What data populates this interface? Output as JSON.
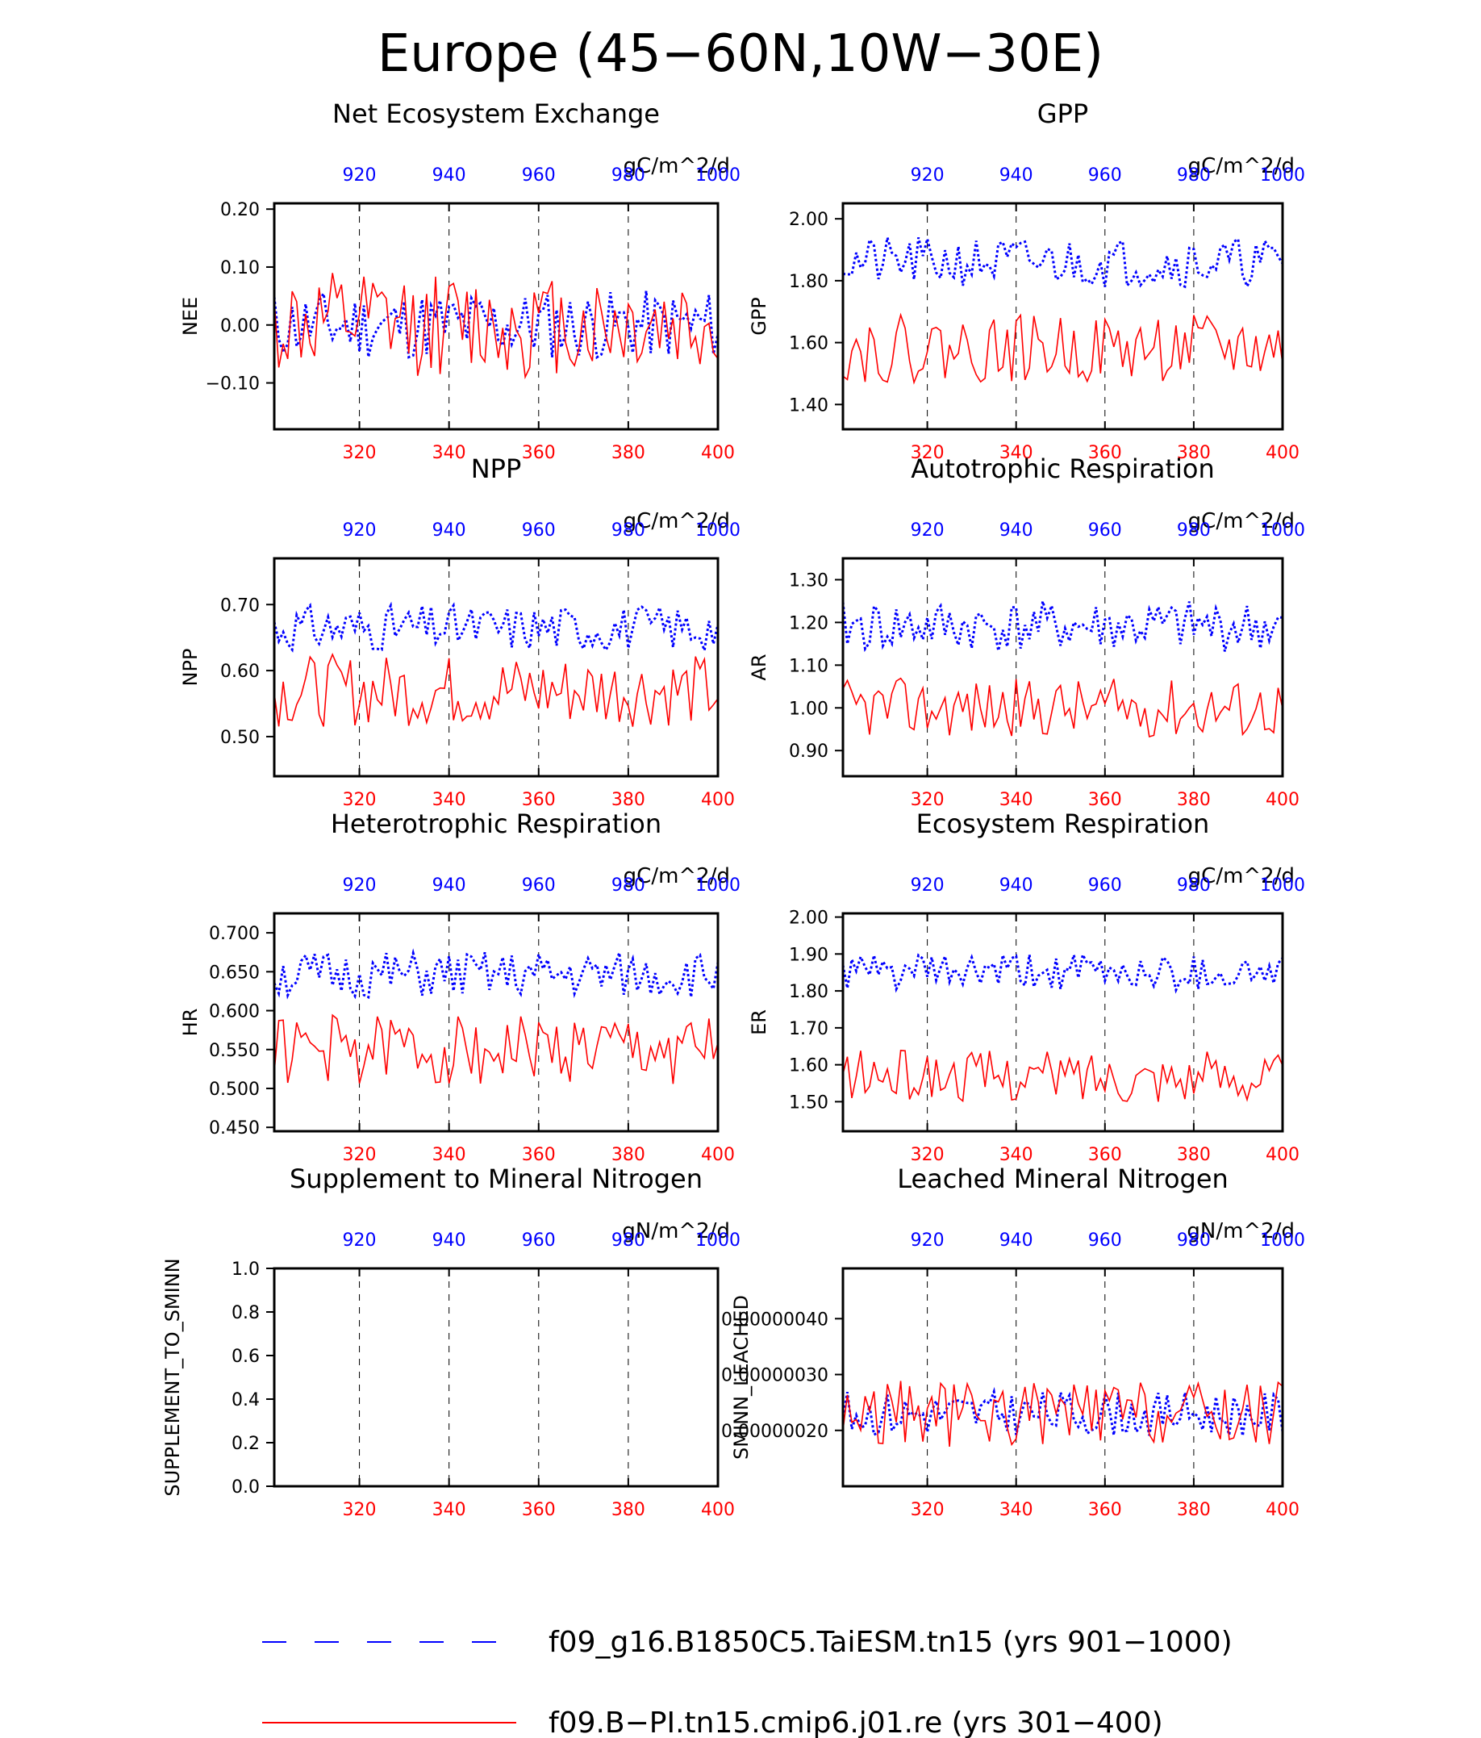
{
  "figure": {
    "title": "Europe (45−60N,10W−30E)",
    "colors": {
      "series_a": "#0000ff",
      "series_b": "#ff0000",
      "frame": "#000000"
    }
  },
  "legend": {
    "items": [
      {
        "label": "f09_g16.B1850C5.TaiESM.tn15 (yrs 901−1000)",
        "color": "#0000ff",
        "style": "dashed"
      },
      {
        "label": "f09.B−PI.tn15.cmip6.j01.re (yrs 301−400)",
        "color": "#ff0000",
        "style": "solid"
      }
    ]
  },
  "chart_data": [
    {
      "type": "line",
      "title": "Net Ecosystem Exchange",
      "units": "gC/m^2/d",
      "ylabel": "NEE",
      "ylim": [
        -0.18,
        0.21
      ],
      "yticks": [
        0.2,
        0.1,
        0.0,
        -0.1
      ],
      "ytick_labels": [
        "0.20",
        "0.10",
        "0.00",
        "−0.10"
      ],
      "x_bottom_ticks": [
        320,
        340,
        360,
        380,
        400
      ],
      "x_top_ticks": [
        920,
        940,
        960,
        980,
        1000
      ],
      "x_range_bottom": [
        301,
        400
      ],
      "grid": "vertical-dashed",
      "series": [
        {
          "color": "#0000ff",
          "dashed": true,
          "years": [
            901,
            1000
          ],
          "mean": 0.0,
          "amp": 0.06,
          "seed": 11
        },
        {
          "color": "#ff0000",
          "dashed": false,
          "years": [
            301,
            400
          ],
          "mean": 0.0,
          "amp": 0.09,
          "seed": 12
        }
      ]
    },
    {
      "type": "line",
      "title": "GPP",
      "units": "gC/m^2/d",
      "ylabel": "GPP",
      "ylim": [
        1.32,
        2.05
      ],
      "yticks": [
        2.0,
        1.8,
        1.6,
        1.4
      ],
      "ytick_labels": [
        "2.00",
        "1.80",
        "1.60",
        "1.40"
      ],
      "x_bottom_ticks": [
        320,
        340,
        360,
        380,
        400
      ],
      "x_top_ticks": [
        920,
        940,
        960,
        980,
        1000
      ],
      "x_range_bottom": [
        301,
        400
      ],
      "grid": "vertical-dashed",
      "series": [
        {
          "color": "#0000ff",
          "dashed": true,
          "years": [
            901,
            1000
          ],
          "mean": 1.86,
          "amp": 0.08,
          "seed": 21
        },
        {
          "color": "#ff0000",
          "dashed": false,
          "years": [
            301,
            400
          ],
          "mean": 1.58,
          "amp": 0.11,
          "seed": 22
        }
      ]
    },
    {
      "type": "line",
      "title": "NPP",
      "units": "gC/m^2/d",
      "ylabel": "NPP",
      "ylim": [
        0.44,
        0.77
      ],
      "yticks": [
        0.7,
        0.6,
        0.5
      ],
      "ytick_labels": [
        "0.70",
        "0.60",
        "0.50"
      ],
      "x_bottom_ticks": [
        320,
        340,
        360,
        380,
        400
      ],
      "x_top_ticks": [
        920,
        940,
        960,
        980,
        1000
      ],
      "x_range_bottom": [
        301,
        400
      ],
      "grid": "vertical-dashed",
      "series": [
        {
          "color": "#0000ff",
          "dashed": true,
          "years": [
            901,
            1000
          ],
          "mean": 0.665,
          "amp": 0.035,
          "seed": 31
        },
        {
          "color": "#ff0000",
          "dashed": false,
          "years": [
            301,
            400
          ],
          "mean": 0.57,
          "amp": 0.055,
          "seed": 32
        }
      ]
    },
    {
      "type": "line",
      "title": "Autotrophic Respiration",
      "units": "gC/m^2/d",
      "ylabel": "AR",
      "ylim": [
        0.84,
        1.35
      ],
      "yticks": [
        1.3,
        1.2,
        1.1,
        1.0,
        0.9
      ],
      "ytick_labels": [
        "1.30",
        "1.20",
        "1.10",
        "1.00",
        "0.90"
      ],
      "x_bottom_ticks": [
        320,
        340,
        360,
        380,
        400
      ],
      "x_top_ticks": [
        920,
        940,
        960,
        980,
        1000
      ],
      "x_range_bottom": [
        301,
        400
      ],
      "grid": "vertical-dashed",
      "series": [
        {
          "color": "#0000ff",
          "dashed": true,
          "years": [
            901,
            1000
          ],
          "mean": 1.19,
          "amp": 0.06,
          "seed": 41
        },
        {
          "color": "#ff0000",
          "dashed": false,
          "years": [
            301,
            400
          ],
          "mean": 1.0,
          "amp": 0.07,
          "seed": 42
        }
      ]
    },
    {
      "type": "line",
      "title": "Heterotrophic Respiration",
      "units": "gC/m^2/d",
      "ylabel": "HR",
      "ylim": [
        0.445,
        0.725
      ],
      "yticks": [
        0.7,
        0.65,
        0.6,
        0.55,
        0.5,
        0.45
      ],
      "ytick_labels": [
        "0.700",
        "0.650",
        "0.600",
        "0.550",
        "0.500",
        "0.450"
      ],
      "x_bottom_ticks": [
        320,
        340,
        360,
        380,
        400
      ],
      "x_top_ticks": [
        920,
        940,
        960,
        980,
        1000
      ],
      "x_range_bottom": [
        301,
        400
      ],
      "grid": "vertical-dashed",
      "series": [
        {
          "color": "#0000ff",
          "dashed": true,
          "years": [
            901,
            1000
          ],
          "mean": 0.645,
          "amp": 0.03,
          "seed": 51
        },
        {
          "color": "#ff0000",
          "dashed": false,
          "years": [
            301,
            400
          ],
          "mean": 0.55,
          "amp": 0.045,
          "seed": 52
        }
      ]
    },
    {
      "type": "line",
      "title": "Ecosystem Respiration",
      "units": "gC/m^2/d",
      "ylabel": "ER",
      "ylim": [
        1.42,
        2.01
      ],
      "yticks": [
        2.0,
        1.9,
        1.8,
        1.7,
        1.6,
        1.5
      ],
      "ytick_labels": [
        "2.00",
        "1.90",
        "1.80",
        "1.70",
        "1.60",
        "1.50"
      ],
      "x_bottom_ticks": [
        320,
        340,
        360,
        380,
        400
      ],
      "x_top_ticks": [
        920,
        940,
        960,
        980,
        1000
      ],
      "x_range_bottom": [
        301,
        400
      ],
      "grid": "vertical-dashed",
      "series": [
        {
          "color": "#0000ff",
          "dashed": true,
          "years": [
            901,
            1000
          ],
          "mean": 1.85,
          "amp": 0.05,
          "seed": 61
        },
        {
          "color": "#ff0000",
          "dashed": false,
          "years": [
            301,
            400
          ],
          "mean": 1.57,
          "amp": 0.07,
          "seed": 62
        }
      ]
    },
    {
      "type": "line",
      "title": "Supplement to Mineral Nitrogen",
      "units": "gN/m^2/d",
      "ylabel": "SUPPLEMENT_TO_SMINN",
      "ylim": [
        0.0,
        1.0
      ],
      "yticks": [
        1.0,
        0.8,
        0.6,
        0.4,
        0.2,
        0.0
      ],
      "ytick_labels": [
        "1.0",
        "0.8",
        "0.6",
        "0.4",
        "0.2",
        "0.0"
      ],
      "x_bottom_ticks": [
        320,
        340,
        360,
        380,
        400
      ],
      "x_top_ticks": [
        920,
        940,
        960,
        980,
        1000
      ],
      "x_range_bottom": [
        301,
        400
      ],
      "grid": "vertical-dashed",
      "series": []
    },
    {
      "type": "line",
      "title": "Leached Mineral Nitrogen",
      "units": "gN/m^2/d",
      "ylabel": "SMINN_LEACHED",
      "ylim": [
        1e-07,
        4.9e-07
      ],
      "yticks": [
        4e-07,
        3e-07,
        2e-07
      ],
      "ytick_labels": [
        "0.00000040",
        "0.00000030",
        "0.00000020"
      ],
      "x_bottom_ticks": [
        320,
        340,
        360,
        380,
        400
      ],
      "x_top_ticks": [
        920,
        940,
        960,
        980,
        1000
      ],
      "x_range_bottom": [
        301,
        400
      ],
      "grid": "vertical-dashed",
      "series": [
        {
          "color": "#0000ff",
          "dashed": true,
          "years": [
            901,
            1000
          ],
          "mean": 2.3e-07,
          "amp": 4e-08,
          "seed": 81
        },
        {
          "color": "#ff0000",
          "dashed": false,
          "years": [
            301,
            400
          ],
          "mean": 2.3e-07,
          "amp": 6e-08,
          "seed": 82
        }
      ]
    }
  ]
}
